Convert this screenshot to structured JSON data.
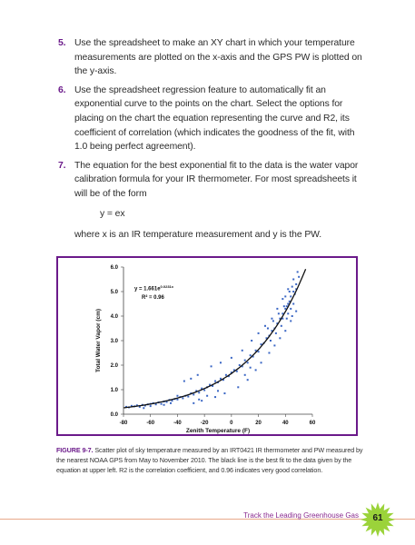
{
  "steps": [
    {
      "num": "5.",
      "text": "Use the spreadsheet to make an XY chart in which your temperature measurements are plotted on the x-axis and the GPS PW is plotted on the y-axis."
    },
    {
      "num": "6.",
      "text": "Use the spreadsheet regression feature to automatically fit an exponential curve to the points on the chart. Select the options for placing on the chart the equation representing the curve and R2, its coefficient of correlation (which indicates the goodness of the fit, with 1.0 being perfect agreement)."
    },
    {
      "num": "7.",
      "text": "The equation for the best exponential fit to the data is the water vapor calibration formula for your IR thermometer. For most spreadsheets it will be of the form",
      "formula": "y = ex",
      "after": "where x is an IR temperature measurement and y is the PW."
    }
  ],
  "chart_data": {
    "type": "scatter",
    "xlabel": "Zenith Temperature (F)",
    "ylabel": "Total Water Vapor (cm)",
    "xlim": [
      -80,
      60
    ],
    "ylim": [
      0,
      6
    ],
    "xticks": [
      "-80",
      "-60",
      "-40",
      "-20",
      "0",
      "20",
      "40",
      "60"
    ],
    "yticks": [
      "0.0",
      "1.0",
      "2.0",
      "3.0",
      "4.0",
      "5.0",
      "6.0"
    ],
    "annotation_eq": "y = 1.661e",
    "annotation_exp": "0.0231x",
    "annotation_r2": "R² = 0.96",
    "fit": {
      "a": 1.661,
      "b": 0.0231
    },
    "series": [
      {
        "points": [
          [
            -78,
            0.3
          ],
          [
            -76,
            0.28
          ],
          [
            -74,
            0.34
          ],
          [
            -72,
            0.32
          ],
          [
            -70,
            0.36
          ],
          [
            -68,
            0.3
          ],
          [
            -66,
            0.38
          ],
          [
            -64,
            0.35
          ],
          [
            -62,
            0.4
          ],
          [
            -60,
            0.33
          ],
          [
            -58,
            0.45
          ],
          [
            -56,
            0.4
          ],
          [
            -54,
            0.48
          ],
          [
            -52,
            0.42
          ],
          [
            -50,
            0.52
          ],
          [
            -48,
            0.5
          ],
          [
            -46,
            0.58
          ],
          [
            -44,
            0.55
          ],
          [
            -42,
            0.62
          ],
          [
            -40,
            0.6
          ],
          [
            -38,
            0.7
          ],
          [
            -36,
            0.65
          ],
          [
            -34,
            0.75
          ],
          [
            -32,
            0.72
          ],
          [
            -30,
            0.85
          ],
          [
            -28,
            0.8
          ],
          [
            -26,
            0.95
          ],
          [
            -24,
            0.88
          ],
          [
            -22,
            1.05
          ],
          [
            -20,
            0.98
          ],
          [
            -18,
            1.1
          ],
          [
            -16,
            1.2
          ],
          [
            -14,
            1.15
          ],
          [
            -12,
            1.35
          ],
          [
            -10,
            1.3
          ],
          [
            -8,
            1.45
          ],
          [
            -6,
            1.4
          ],
          [
            -4,
            1.6
          ],
          [
            -2,
            1.55
          ],
          [
            0,
            1.7
          ],
          [
            2,
            1.8
          ],
          [
            4,
            1.75
          ],
          [
            6,
            2.0
          ],
          [
            8,
            1.95
          ],
          [
            10,
            2.2
          ],
          [
            12,
            2.1
          ],
          [
            14,
            2.4
          ],
          [
            16,
            2.35
          ],
          [
            18,
            2.6
          ],
          [
            20,
            2.55
          ],
          [
            22,
            2.85
          ],
          [
            24,
            2.9
          ],
          [
            26,
            3.1
          ],
          [
            28,
            3.2
          ],
          [
            30,
            3.4
          ],
          [
            32,
            3.5
          ],
          [
            34,
            3.7
          ],
          [
            36,
            3.9
          ],
          [
            38,
            4.1
          ],
          [
            40,
            4.3
          ],
          [
            42,
            4.5
          ],
          [
            44,
            4.8
          ],
          [
            46,
            5.0
          ],
          [
            48,
            5.3
          ],
          [
            50,
            5.6
          ],
          [
            -35,
            1.35
          ],
          [
            -30,
            1.45
          ],
          [
            -28,
            0.45
          ],
          [
            -25,
            1.6
          ],
          [
            -22,
            0.55
          ],
          [
            -15,
            1.95
          ],
          [
            -12,
            0.7
          ],
          [
            -8,
            2.1
          ],
          [
            -5,
            0.85
          ],
          [
            0,
            2.3
          ],
          [
            5,
            1.1
          ],
          [
            8,
            2.6
          ],
          [
            12,
            1.4
          ],
          [
            15,
            3.0
          ],
          [
            18,
            1.8
          ],
          [
            20,
            3.3
          ],
          [
            22,
            2.1
          ],
          [
            25,
            3.6
          ],
          [
            28,
            2.5
          ],
          [
            30,
            3.9
          ],
          [
            32,
            2.8
          ],
          [
            34,
            4.3
          ],
          [
            36,
            3.1
          ],
          [
            38,
            4.7
          ],
          [
            40,
            3.4
          ],
          [
            42,
            5.1
          ],
          [
            44,
            3.8
          ],
          [
            46,
            5.5
          ],
          [
            48,
            4.2
          ],
          [
            49,
            5.8
          ],
          [
            45,
            4.0
          ],
          [
            43,
            4.6
          ],
          [
            41,
            3.9
          ],
          [
            39,
            4.4
          ],
          [
            37,
            3.6
          ],
          [
            35,
            4.1
          ],
          [
            33,
            3.3
          ],
          [
            31,
            3.8
          ],
          [
            29,
            3.0
          ],
          [
            27,
            3.5
          ],
          [
            46,
            4.5
          ],
          [
            47,
            4.9
          ],
          [
            44,
            4.3
          ],
          [
            42,
            4.1
          ],
          [
            40,
            4.8
          ],
          [
            38,
            3.9
          ],
          [
            45,
            5.2
          ],
          [
            43,
            5.0
          ],
          [
            41,
            4.4
          ],
          [
            48,
            5.1
          ],
          [
            -10,
            0.95
          ],
          [
            -18,
            0.75
          ],
          [
            -24,
            0.6
          ],
          [
            -40,
            0.75
          ],
          [
            -45,
            0.45
          ],
          [
            -50,
            0.38
          ],
          [
            -60,
            0.42
          ],
          [
            -65,
            0.25
          ],
          [
            10,
            1.6
          ],
          [
            14,
            1.9
          ]
        ]
      }
    ]
  },
  "caption": {
    "label": "FIGURE 9-7.",
    "text": " Scatter plot of sky temperature measured by an IRT0421 IR thermometer and PW measured by the nearest NOAA GPS from May to November 2010. The black line is the best fit to the data given by the equation at upper left. R2 is the correlation coefficient, and 0.96 indicates very good correlation."
  },
  "footer": {
    "title": "Track the Leading Greenhouse Gas",
    "page": "61"
  },
  "colors": {
    "accent": "#6b1a8a",
    "points": "#3a66c4",
    "badge": "#9bd33a"
  }
}
